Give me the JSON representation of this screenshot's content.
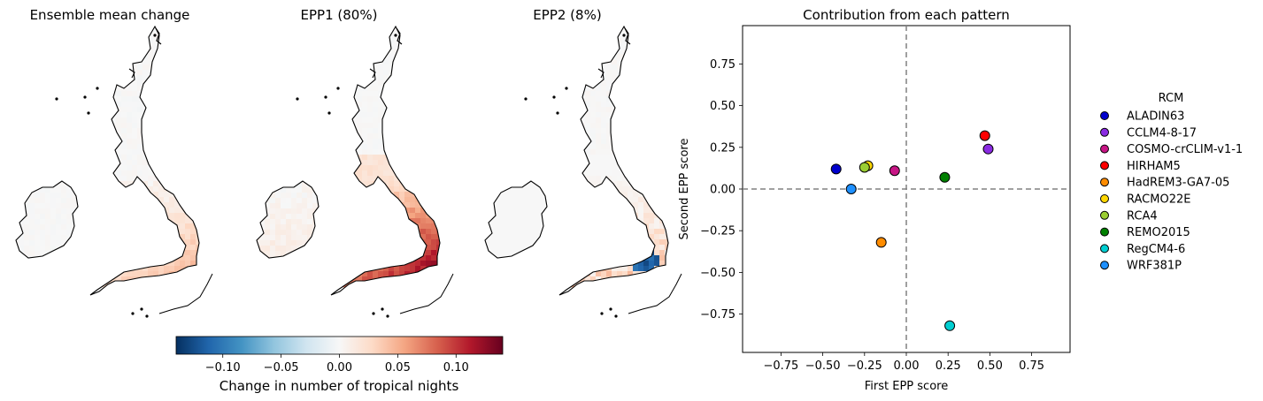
{
  "maps": [
    {
      "title": "Ensemble mean change",
      "intensity": "weak",
      "accent": "#f2b8a0"
    },
    {
      "title": "EPP1 (80%)",
      "intensity": "strong",
      "accent": "#c0393b"
    },
    {
      "title": "EPP2 (8%)",
      "intensity": "mixed",
      "accent": "#1f62a8"
    }
  ],
  "colorbar": {
    "label": "Change in number of tropical nights",
    "range": [
      -0.14,
      0.14
    ],
    "ticks": [
      -0.1,
      -0.05,
      0.0,
      0.05,
      0.1
    ],
    "tick_labels": [
      "−0.10",
      "−0.05",
      "0.00",
      "0.05",
      "0.10"
    ],
    "colormap": "RdBu_r",
    "colors": [
      "#053061",
      "#2166ac",
      "#4393c3",
      "#92c5de",
      "#d1e5f0",
      "#f7f7f7",
      "#fddbc7",
      "#f4a582",
      "#d6604d",
      "#b2182b",
      "#67001f"
    ]
  },
  "chart_data": {
    "type": "scatter",
    "title": "Contribution from each pattern",
    "xlabel": "First EPP score",
    "ylabel": "Second EPP score",
    "xlim": [
      -0.98,
      0.98
    ],
    "ylim": [
      -0.98,
      0.98
    ],
    "xticks": [
      -0.75,
      -0.5,
      -0.25,
      0.0,
      0.25,
      0.5,
      0.75
    ],
    "yticks": [
      -0.75,
      -0.5,
      -0.25,
      0.0,
      0.25,
      0.5,
      0.75
    ],
    "xtick_labels": [
      "−0.75",
      "−0.50",
      "−0.25",
      "0.00",
      "0.25",
      "0.50",
      "0.75"
    ],
    "ytick_labels": [
      "−0.75",
      "−0.50",
      "−0.25",
      "0.00",
      "0.25",
      "0.50",
      "0.75"
    ],
    "zero_lines": true,
    "grid": false,
    "legend_title": "RCM",
    "legend_position": "right",
    "points": [
      {
        "name": "ALADIN63",
        "x": -0.42,
        "y": 0.12,
        "color": "#0000cd"
      },
      {
        "name": "CCLM4-8-17",
        "x": 0.49,
        "y": 0.24,
        "color": "#8a2be2"
      },
      {
        "name": "COSMO-crCLIM-v1-1",
        "x": -0.07,
        "y": 0.11,
        "color": "#c71585"
      },
      {
        "name": "HIRHAM5",
        "x": 0.47,
        "y": 0.32,
        "color": "#ff0000"
      },
      {
        "name": "HadREM3-GA7-05",
        "x": -0.15,
        "y": -0.32,
        "color": "#ff8c00"
      },
      {
        "name": "RACMO22E",
        "x": -0.23,
        "y": 0.14,
        "color": "#ffd700"
      },
      {
        "name": "RCA4",
        "x": -0.25,
        "y": 0.13,
        "color": "#9acd32"
      },
      {
        "name": "REMO2015",
        "x": 0.23,
        "y": 0.07,
        "color": "#008000"
      },
      {
        "name": "RegCM4-6",
        "x": 0.26,
        "y": -0.82,
        "color": "#00ced1"
      },
      {
        "name": "WRF381P",
        "x": -0.33,
        "y": 0.0,
        "color": "#1e90ff"
      }
    ]
  }
}
